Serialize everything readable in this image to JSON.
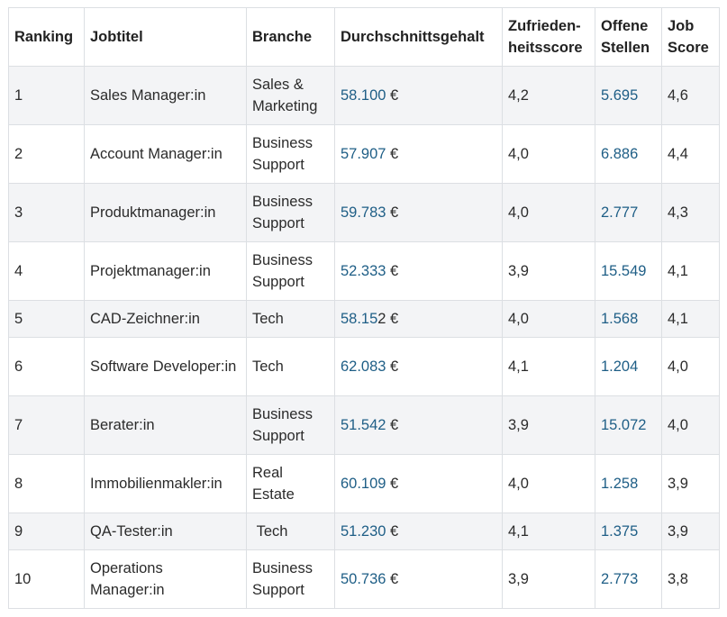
{
  "headers": [
    "Ranking",
    "Jobtitel",
    "Branche",
    "Durchschnittsgehalt",
    "Zufrieden-heitsscore",
    "Offene Stellen",
    "Job Score"
  ],
  "colors": {
    "link": "#1e5e86",
    "row_alt": "#f3f4f6",
    "border": "#dcdfe3"
  },
  "rows": [
    {
      "rank": "1",
      "title": "Sales Manager:in",
      "branch": "Sales & Marketing",
      "salary_link": "58.100",
      "salary_rest": " €",
      "satisfaction": "4,2",
      "openings": "5.695",
      "score": "4,6"
    },
    {
      "rank": "2",
      "title": "Account Manager:in",
      "branch": "Business Support",
      "salary_link": "57.907",
      "salary_rest": " €",
      "satisfaction": "4,0",
      "openings": "6.886",
      "score": "4,4"
    },
    {
      "rank": "3",
      "title": "Produktmanager:in",
      "branch": "Business Support",
      "salary_link": "59.783",
      "salary_rest": " €",
      "satisfaction": "4,0",
      "openings": "2.777",
      "score": "4,3"
    },
    {
      "rank": "4",
      "title": "Projektmanager:in",
      "branch": "Business Support",
      "salary_link": "52.333",
      "salary_rest": " €",
      "satisfaction": "3,9",
      "openings": "15.549",
      "score": "4,1"
    },
    {
      "rank": "5",
      "title": "CAD-Zeichner:in",
      "branch": "Tech",
      "salary_link": "58.15",
      "salary_rest": "2 €",
      "satisfaction": "4,0",
      "openings": "1.568",
      "score": "4,1"
    },
    {
      "rank": "6",
      "title": "Software Developer:in",
      "branch": "Tech",
      "salary_link": "62.083",
      "salary_rest": " €",
      "satisfaction": "4,1",
      "openings": "1.204",
      "score": "4,0"
    },
    {
      "rank": "7",
      "title": "Berater:in",
      "branch": "Business Support",
      "salary_link": "51.542",
      "salary_rest": " €",
      "satisfaction": "3,9",
      "openings": "15.072",
      "score": "4,0"
    },
    {
      "rank": "8",
      "title": "Immobilienmakler:in",
      "branch": "Real Estate",
      "salary_link": "60.109",
      "salary_rest": " €",
      "satisfaction": "4,0",
      "openings": "1.258",
      "score": "3,9"
    },
    {
      "rank": "9",
      "title": "QA-Tester:in",
      "branch": " Tech",
      "salary_link": "51.230",
      "salary_rest": " €",
      "satisfaction": "4,1",
      "openings": "1.375",
      "score": "3,9"
    },
    {
      "rank": "10",
      "title": "Operations Manager:in",
      "branch": "Business Support",
      "salary_link": "50.736",
      "salary_rest": " €",
      "satisfaction": "3,9",
      "openings": "2.773",
      "score": "3,8"
    }
  ]
}
